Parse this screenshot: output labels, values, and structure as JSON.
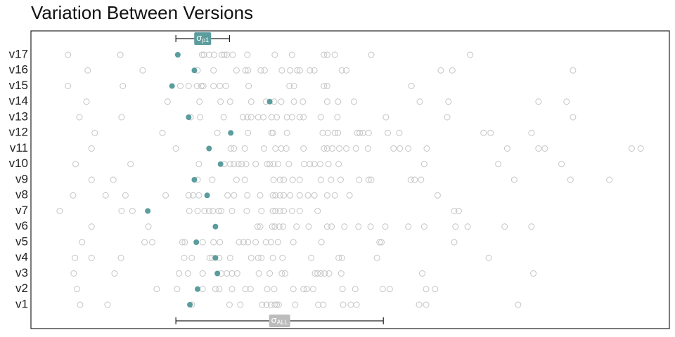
{
  "chart_data": {
    "type": "strip",
    "title": "Variation Between Versions",
    "xlim": [
      0,
      100
    ],
    "point_color": "#c4c4c4",
    "highlight_color": "#5b9c9d",
    "series": [
      {
        "name": "v1",
        "highlight": 24.9,
        "values": [
          7.7,
          12.0,
          25.2,
          31.1,
          32.8,
          36.2,
          36.9,
          37.6,
          38.2,
          38.5,
          38.8,
          41.4,
          45.0,
          45.8,
          48.9,
          50.1,
          51.0,
          60.8,
          61.9,
          76.3
        ]
      },
      {
        "name": "v2",
        "highlight": 26.1,
        "values": [
          7.2,
          19.7,
          22.9,
          26.9,
          28.9,
          29.5,
          31.5,
          33.6,
          34.4,
          37.0,
          38.1,
          41.1,
          42.7,
          43.2,
          44.2,
          48.8,
          50.8,
          55.1,
          56.2,
          61.9,
          63.3
        ]
      },
      {
        "name": "v3",
        "highlight": 29.2,
        "values": [
          6.7,
          13.1,
          23.2,
          24.6,
          26.9,
          29.8,
          30.7,
          31.5,
          32.3,
          35.7,
          37.4,
          39.3,
          39.8,
          44.5,
          44.9,
          45.4,
          46.0,
          46.7,
          48.6,
          61.3,
          78.7
        ]
      },
      {
        "name": "v4",
        "highlight": 28.9,
        "values": [
          6.9,
          9.5,
          14.1,
          24.0,
          25.2,
          28.0,
          28.4,
          29.5,
          31.2,
          34.5,
          35.6,
          36.1,
          37.9,
          39.4,
          43.9,
          48.2,
          48.7,
          54.2,
          71.7
        ]
      },
      {
        "name": "v5",
        "highlight": 25.9,
        "values": [
          8.0,
          17.8,
          19.0,
          23.7,
          24.1,
          26.9,
          28.6,
          29.6,
          32.6,
          33.3,
          34.0,
          35.2,
          36.8,
          37.6,
          38.7,
          41.1,
          45.5,
          54.6,
          54.9,
          66.3
        ]
      },
      {
        "name": "v6",
        "highlight": 28.9,
        "values": [
          9.5,
          18.4,
          35.5,
          35.9,
          37.8,
          38.2,
          38.9,
          39.5,
          41.6,
          43.5,
          46.4,
          47.1,
          49.1,
          51.3,
          53.2,
          55.5,
          59.1,
          61.6,
          66.5,
          68.4,
          74.2,
          78.4
        ]
      },
      {
        "name": "v7",
        "highlight": 18.3,
        "values": [
          4.5,
          14.2,
          15.9,
          24.8,
          26.1,
          27.2,
          27.9,
          28.5,
          29.4,
          29.8,
          31.5,
          33.8,
          36.1,
          37.9,
          38.3,
          39.0,
          39.6,
          40.9,
          42.1,
          44.9,
          66.3,
          67.0
        ]
      },
      {
        "name": "v8",
        "highlight": 27.6,
        "values": [
          6.6,
          11.7,
          14.8,
          21.1,
          24.7,
          25.4,
          26.3,
          30.8,
          31.8,
          33.9,
          35.9,
          37.9,
          38.3,
          39.0,
          39.6,
          40.6,
          42.1,
          43.4,
          44.4,
          46.4,
          47.6,
          49.9,
          63.7
        ]
      },
      {
        "name": "v9",
        "highlight": 25.6,
        "values": [
          9.5,
          12.9,
          26.1,
          28.4,
          32.2,
          33.5,
          38.0,
          39.0,
          39.6,
          41.0,
          42.1,
          45.4,
          47.0,
          48.5,
          51.4,
          52.9,
          53.3,
          59.5,
          60.1,
          61.1,
          75.7,
          84.5,
          90.6
        ]
      },
      {
        "name": "v10",
        "highlight": 29.7,
        "values": [
          7.0,
          15.6,
          26.3,
          30.3,
          31.2,
          31.8,
          32.5,
          33.0,
          33.7,
          35.2,
          37.0,
          37.4,
          38.0,
          38.7,
          40.4,
          42.8,
          43.7,
          44.4,
          45.3,
          46.6,
          48.2,
          61.6,
          73.2,
          83.1
        ]
      },
      {
        "name": "v11",
        "highlight": 27.9,
        "values": [
          9.5,
          22.7,
          31.3,
          31.8,
          33.5,
          36.5,
          38.3,
          39.2,
          40.0,
          42.7,
          45.9,
          46.4,
          47.2,
          48.3,
          49.4,
          50.9,
          52.8,
          56.8,
          57.8,
          59.1,
          62.0,
          74.6,
          79.5,
          80.5,
          94.1,
          95.5
        ]
      },
      {
        "name": "v12",
        "highlight": 31.3,
        "values": [
          10.0,
          20.6,
          29.2,
          34.0,
          37.7,
          37.9,
          40.1,
          45.7,
          46.5,
          47.6,
          48.1,
          51.1,
          51.5,
          52.0,
          52.9,
          55.9,
          57.7,
          70.9,
          72.0,
          78.4
        ]
      },
      {
        "name": "v13",
        "highlight": 24.7,
        "values": [
          7.6,
          14.2,
          25.0,
          26.5,
          30.2,
          33.2,
          33.9,
          34.5,
          35.6,
          36.4,
          37.7,
          38.5,
          40.1,
          40.9,
          42.1,
          42.7,
          45.4,
          48.0,
          55.6,
          65.2,
          84.9
        ]
      },
      {
        "name": "v14",
        "highlight": 37.4,
        "values": [
          8.7,
          21.4,
          26.4,
          29.7,
          31.2,
          34.5,
          36.8,
          38.1,
          39.2,
          41.2,
          42.6,
          46.4,
          48.1,
          50.6,
          60.9,
          65.4,
          79.5,
          83.9
        ]
      },
      {
        "name": "v15",
        "highlight": 22.1,
        "values": [
          5.8,
          14.4,
          23.4,
          24.7,
          26.0,
          26.7,
          27.0,
          28.6,
          29.6,
          30.5,
          34.1,
          40.5,
          41.2,
          45.9,
          46.4,
          59.6
        ]
      },
      {
        "name": "v16",
        "highlight": 25.6,
        "values": [
          8.9,
          17.5,
          26.1,
          28.6,
          32.2,
          33.6,
          34.0,
          36.0,
          36.6,
          39.3,
          40.6,
          41.7,
          42.1,
          43.7,
          44.4,
          48.7,
          49.4,
          64.2,
          66.0,
          84.9
        ]
      },
      {
        "name": "v17",
        "highlight": 23.0,
        "values": [
          5.8,
          14.0,
          26.8,
          27.1,
          27.9,
          28.7,
          29.9,
          30.3,
          30.7,
          31.6,
          33.9,
          38.2,
          40.9,
          45.9,
          46.4,
          47.6,
          53.3,
          68.8
        ]
      }
    ],
    "annotations": [
      {
        "symbol": "σ",
        "subscript": "p1",
        "range": [
          22.7,
          31.1
        ],
        "color": "#5b9c9d",
        "position": "top"
      },
      {
        "symbol": "σ",
        "subscript": "ALL",
        "range": [
          22.7,
          55.2
        ],
        "color": "#bcbcbc",
        "position": "bottom"
      }
    ]
  }
}
